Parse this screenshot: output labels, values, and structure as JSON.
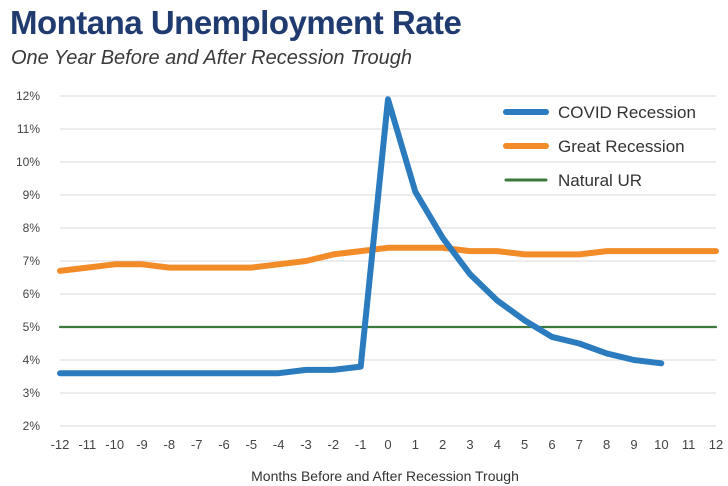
{
  "chart_data": {
    "type": "line",
    "title": "Montana Unemployment Rate",
    "subtitle": "One Year Before and After Recession Trough",
    "xlabel": "Months Before and After Recession Trough",
    "ylabel": "",
    "x": [
      -12,
      -11,
      -10,
      -9,
      -8,
      -7,
      -6,
      -5,
      -4,
      -3,
      -2,
      -1,
      0,
      1,
      2,
      3,
      4,
      5,
      6,
      7,
      8,
      9,
      10,
      11,
      12
    ],
    "x_tick_labels": [
      "-12",
      "-11",
      "-10",
      "-9",
      "-8",
      "-7",
      "-6",
      "-5",
      "-4",
      "-3",
      "-2",
      "-1",
      "0",
      "1",
      "2",
      "3",
      "4",
      "5",
      "6",
      "7",
      "8",
      "9",
      "10",
      "11",
      "12"
    ],
    "ylim": [
      2,
      12
    ],
    "y_ticks": [
      2,
      3,
      4,
      5,
      6,
      7,
      8,
      9,
      10,
      11,
      12
    ],
    "y_tick_labels": [
      "2%",
      "3%",
      "4%",
      "5%",
      "6%",
      "7%",
      "8%",
      "9%",
      "10%",
      "11%",
      "12%"
    ],
    "grid": true,
    "legend_position": "top-right",
    "series": [
      {
        "name": "COVID Recession",
        "color": "#2b7bbf",
        "x": [
          -12,
          -11,
          -10,
          -9,
          -8,
          -7,
          -6,
          -5,
          -4,
          -3,
          -2,
          -1,
          0,
          1,
          2,
          3,
          4,
          5,
          6,
          7,
          8,
          9,
          10
        ],
        "values": [
          3.6,
          3.6,
          3.6,
          3.6,
          3.6,
          3.6,
          3.6,
          3.6,
          3.6,
          3.7,
          3.7,
          3.8,
          11.9,
          9.1,
          7.7,
          6.6,
          5.8,
          5.2,
          4.7,
          4.5,
          4.2,
          4.0,
          3.9
        ]
      },
      {
        "name": "Great Recession",
        "color": "#f28c28",
        "x": [
          -12,
          -11,
          -10,
          -9,
          -8,
          -7,
          -6,
          -5,
          -4,
          -3,
          -2,
          -1,
          0,
          1,
          2,
          3,
          4,
          5,
          6,
          7,
          8,
          9,
          10,
          11,
          12
        ],
        "values": [
          6.7,
          6.8,
          6.9,
          6.9,
          6.8,
          6.8,
          6.8,
          6.8,
          6.9,
          7.0,
          7.2,
          7.3,
          7.4,
          7.4,
          7.4,
          7.3,
          7.3,
          7.2,
          7.2,
          7.2,
          7.3,
          7.3,
          7.3,
          7.3,
          7.3
        ]
      },
      {
        "name": "Natural UR",
        "color": "#3c7a3c",
        "x": [
          -12,
          12
        ],
        "values": [
          5.0,
          5.0
        ]
      }
    ]
  }
}
